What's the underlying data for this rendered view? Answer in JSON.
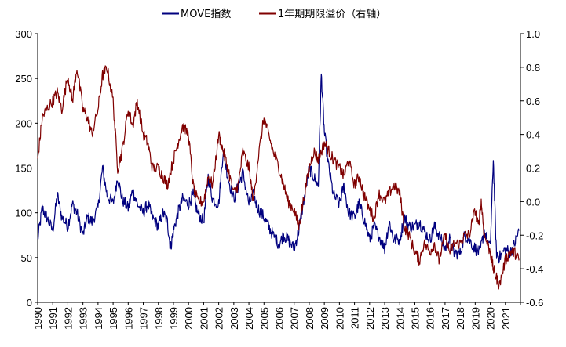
{
  "chart_data": {
    "type": "line",
    "title": "",
    "legend_position": "top-center",
    "x_tick_labels": [
      "1990",
      "1991",
      "1992",
      "1993",
      "1994",
      "1995",
      "1996",
      "1997",
      "1998",
      "1999",
      "2000",
      "2001",
      "2002",
      "2003",
      "2004",
      "2005",
      "2006",
      "2007",
      "2008",
      "2009",
      "2010",
      "2011",
      "2012",
      "2013",
      "2014",
      "2015",
      "2016",
      "2017",
      "2018",
      "2019",
      "2020",
      "2021"
    ],
    "y_left": {
      "ylim": [
        0,
        300
      ],
      "ticks": [
        0,
        50,
        100,
        150,
        200,
        250,
        300
      ],
      "tick_labels": [
        "0",
        "50",
        "100",
        "150",
        "200",
        "250",
        "300"
      ]
    },
    "y_right": {
      "ylim": [
        -0.6,
        1.0
      ],
      "ticks": [
        -0.6,
        -0.4,
        -0.2,
        0.0,
        0.2,
        0.4,
        0.6,
        0.8,
        1.0
      ],
      "tick_labels": [
        "-0.6",
        "-0.4",
        "-0.2",
        "0.0",
        "0.2",
        "0.4",
        "0.6",
        "0.8",
        "1.0"
      ],
      "negative_color": "#ff0000"
    },
    "series": [
      {
        "name": "MOVE指数",
        "axis": "left",
        "color": "#00007f",
        "x": [
          1990.0,
          1990.3,
          1990.6,
          1991.0,
          1991.3,
          1991.6,
          1992.0,
          1992.3,
          1992.6,
          1993.0,
          1993.3,
          1993.6,
          1994.0,
          1994.3,
          1994.6,
          1995.0,
          1995.3,
          1995.6,
          1996.0,
          1996.3,
          1996.6,
          1997.0,
          1997.3,
          1997.6,
          1998.0,
          1998.3,
          1998.6,
          1998.8,
          1999.0,
          1999.3,
          1999.6,
          2000.0,
          2000.3,
          2000.6,
          2001.0,
          2001.3,
          2001.6,
          2002.0,
          2002.3,
          2002.6,
          2003.0,
          2003.3,
          2003.6,
          2004.0,
          2004.3,
          2004.6,
          2005.0,
          2005.3,
          2005.6,
          2006.0,
          2006.3,
          2006.6,
          2007.0,
          2007.3,
          2007.6,
          2008.0,
          2008.3,
          2008.6,
          2008.8,
          2009.0,
          2009.3,
          2009.6,
          2010.0,
          2010.3,
          2010.6,
          2011.0,
          2011.3,
          2011.6,
          2012.0,
          2012.3,
          2012.6,
          2013.0,
          2013.3,
          2013.6,
          2014.0,
          2014.3,
          2014.6,
          2015.0,
          2015.3,
          2015.6,
          2016.0,
          2016.3,
          2016.6,
          2017.0,
          2017.3,
          2017.6,
          2018.0,
          2018.3,
          2018.6,
          2019.0,
          2019.3,
          2019.6,
          2020.0,
          2020.2,
          2020.4,
          2020.6,
          2021.0,
          2021.3,
          2021.6,
          2021.9
        ],
        "values": [
          70,
          105,
          95,
          80,
          120,
          95,
          85,
          110,
          100,
          75,
          95,
          90,
          105,
          150,
          120,
          110,
          140,
          115,
          105,
          125,
          110,
          100,
          110,
          95,
          85,
          100,
          90,
          60,
          80,
          100,
          115,
          110,
          120,
          100,
          90,
          140,
          115,
          110,
          170,
          140,
          115,
          130,
          145,
          110,
          120,
          105,
          95,
          85,
          75,
          65,
          75,
          70,
          60,
          80,
          110,
          150,
          140,
          130,
          255,
          190,
          150,
          120,
          110,
          130,
          100,
          95,
          110,
          95,
          70,
          85,
          75,
          60,
          90,
          70,
          70,
          95,
          85,
          85,
          90,
          80,
          70,
          85,
          75,
          60,
          70,
          55,
          55,
          75,
          70,
          60,
          55,
          80,
          60,
          160,
          55,
          50,
          60,
          55,
          65,
          80
        ]
      },
      {
        "name": "1年期期限溢价（右轴）",
        "axis": "right",
        "color": "#800000",
        "x": [
          1990.0,
          1990.3,
          1990.6,
          1991.0,
          1991.3,
          1991.6,
          1992.0,
          1992.3,
          1992.6,
          1993.0,
          1993.3,
          1993.6,
          1994.0,
          1994.3,
          1994.6,
          1995.0,
          1995.3,
          1995.6,
          1996.0,
          1996.3,
          1996.6,
          1997.0,
          1997.3,
          1997.6,
          1998.0,
          1998.3,
          1998.6,
          1999.0,
          1999.3,
          1999.6,
          2000.0,
          2000.3,
          2000.6,
          2001.0,
          2001.3,
          2001.6,
          2002.0,
          2002.3,
          2002.6,
          2003.0,
          2003.3,
          2003.6,
          2004.0,
          2004.3,
          2004.6,
          2005.0,
          2005.3,
          2005.6,
          2006.0,
          2006.3,
          2006.6,
          2007.0,
          2007.3,
          2007.6,
          2008.0,
          2008.3,
          2008.6,
          2009.0,
          2009.3,
          2009.6,
          2010.0,
          2010.3,
          2010.6,
          2011.0,
          2011.3,
          2011.6,
          2012.0,
          2012.3,
          2012.6,
          2013.0,
          2013.3,
          2013.6,
          2014.0,
          2014.3,
          2014.6,
          2015.0,
          2015.3,
          2015.6,
          2016.0,
          2016.3,
          2016.6,
          2017.0,
          2017.3,
          2017.6,
          2018.0,
          2018.3,
          2018.6,
          2019.0,
          2019.2,
          2019.4,
          2019.6,
          2020.0,
          2020.2,
          2020.4,
          2020.6,
          2021.0,
          2021.3,
          2021.6,
          2021.9
        ],
        "values": [
          0.25,
          0.5,
          0.55,
          0.6,
          0.65,
          0.55,
          0.75,
          0.6,
          0.8,
          0.55,
          0.5,
          0.4,
          0.55,
          0.75,
          0.8,
          0.6,
          0.2,
          0.3,
          0.55,
          0.45,
          0.6,
          0.4,
          0.35,
          0.2,
          0.2,
          0.15,
          0.1,
          0.25,
          0.35,
          0.45,
          0.4,
          0.1,
          0.0,
          0.0,
          0.15,
          0.1,
          0.4,
          0.3,
          0.2,
          0.05,
          0.1,
          0.3,
          0.2,
          0.0,
          0.25,
          0.5,
          0.4,
          0.3,
          0.2,
          0.1,
          0.0,
          -0.05,
          -0.15,
          0.0,
          0.2,
          0.3,
          0.25,
          0.35,
          0.3,
          0.25,
          0.2,
          0.15,
          0.25,
          0.1,
          0.15,
          0.05,
          -0.05,
          -0.1,
          0.05,
          0.0,
          0.05,
          0.1,
          0.05,
          -0.15,
          -0.2,
          -0.3,
          -0.35,
          -0.25,
          -0.3,
          -0.25,
          -0.35,
          -0.2,
          -0.3,
          -0.25,
          -0.25,
          -0.2,
          -0.2,
          -0.05,
          -0.15,
          0.0,
          -0.2,
          -0.3,
          -0.4,
          -0.45,
          -0.5,
          -0.35,
          -0.3,
          -0.3,
          -0.35
        ]
      }
    ]
  }
}
